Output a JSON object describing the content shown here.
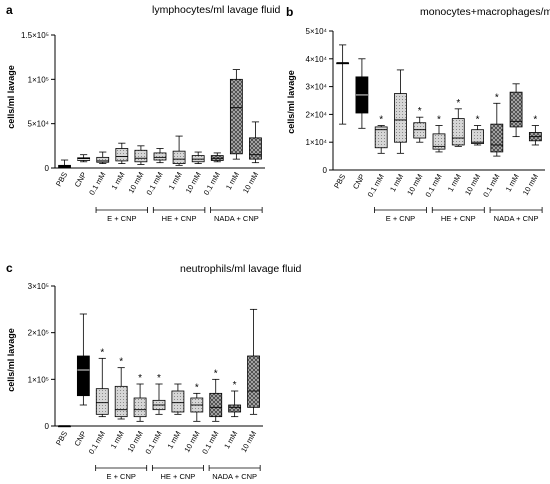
{
  "chart_data": [
    {
      "type": "box",
      "panel_letter": "a",
      "title": "lymphocytes/ml lavage fluid",
      "ylabel": "cells/ml lavage",
      "ylim": [
        0,
        150000
      ],
      "yticks": [
        "0",
        "5×10⁴",
        "1×10⁵",
        "1.5×10⁵"
      ],
      "ytick_values": [
        0,
        50000,
        100000,
        150000
      ],
      "categories": [
        "PBS",
        "CNP",
        "0.1 mM",
        "1 mM",
        "10 mM",
        "0.1 mM",
        "1 mM",
        "10 mM",
        "0.1 mM",
        "1 mM",
        "10 mM"
      ],
      "groups": [
        {
          "label": "E + CNP",
          "from": 2,
          "to": 4
        },
        {
          "label": "HE + CNP",
          "from": 5,
          "to": 7
        },
        {
          "label": "NADA + CNP",
          "from": 8,
          "to": 10
        }
      ],
      "boxes": [
        {
          "min": 0,
          "q1": 1000,
          "median": 2000,
          "q3": 3000,
          "max": 9000
        },
        {
          "min": 7000,
          "q1": 8500,
          "median": 9500,
          "q3": 11500,
          "max": 15000
        },
        {
          "min": 5000,
          "q1": 6500,
          "median": 8000,
          "q3": 12000,
          "max": 18000
        },
        {
          "min": 5000,
          "q1": 8000,
          "median": 13000,
          "q3": 22000,
          "max": 28000
        },
        {
          "min": 4000,
          "q1": 7000,
          "median": 11000,
          "q3": 20000,
          "max": 25000
        },
        {
          "min": 6000,
          "q1": 9000,
          "median": 12000,
          "q3": 17000,
          "max": 22000
        },
        {
          "min": 3000,
          "q1": 5000,
          "median": 10000,
          "q3": 19000,
          "max": 36000
        },
        {
          "min": 5000,
          "q1": 7000,
          "median": 10000,
          "q3": 14000,
          "max": 18000
        },
        {
          "min": 7000,
          "q1": 8500,
          "median": 11000,
          "q3": 14000,
          "max": 17000
        },
        {
          "min": 10000,
          "q1": 16000,
          "median": 68000,
          "q3": 100000,
          "max": 111000
        },
        {
          "min": 6000,
          "q1": 10000,
          "median": 15000,
          "q3": 34000,
          "max": 52000
        }
      ],
      "significance": [
        false,
        false,
        false,
        false,
        false,
        false,
        false,
        false,
        false,
        false,
        false
      ],
      "fills": [
        "none",
        "solid",
        "light",
        "light",
        "light",
        "light",
        "light",
        "light",
        "cross",
        "cross",
        "cross"
      ]
    },
    {
      "type": "box",
      "panel_letter": "b",
      "title": "monocytes+macrophages/ml lavage fluid",
      "ylabel": "cells/ml lavage",
      "ylim": [
        0,
        50000
      ],
      "yticks": [
        "0",
        "1×10⁴",
        "2×10⁴",
        "3×10⁴",
        "4×10⁴",
        "5×10⁴"
      ],
      "ytick_values": [
        0,
        10000,
        20000,
        30000,
        40000,
        50000
      ],
      "categories": [
        "PBS",
        "CNP",
        "0.1 mM",
        "1 mM",
        "10 mM",
        "0.1 mM",
        "1 mM",
        "10 mM",
        "0.1 mM",
        "1 mM",
        "10 mM"
      ],
      "groups": [
        {
          "label": "E + CNP",
          "from": 2,
          "to": 4
        },
        {
          "label": "HE + CNP",
          "from": 5,
          "to": 7
        },
        {
          "label": "NADA + CNP",
          "from": 8,
          "to": 10
        }
      ],
      "boxes": [
        {
          "min": 16500,
          "q1": 38500,
          "median": 38500,
          "q3": 38500,
          "max": 45000
        },
        {
          "min": 15000,
          "q1": 20500,
          "median": 27000,
          "q3": 33500,
          "max": 40000
        },
        {
          "min": 6000,
          "q1": 8000,
          "median": 14500,
          "q3": 15500,
          "max": 16000
        },
        {
          "min": 6000,
          "q1": 10000,
          "median": 18000,
          "q3": 27500,
          "max": 36000
        },
        {
          "min": 10000,
          "q1": 11500,
          "median": 14500,
          "q3": 17000,
          "max": 19000
        },
        {
          "min": 6500,
          "q1": 7500,
          "median": 8500,
          "q3": 13000,
          "max": 16000
        },
        {
          "min": 8500,
          "q1": 9000,
          "median": 11500,
          "q3": 18500,
          "max": 22000
        },
        {
          "min": 9000,
          "q1": 9500,
          "median": 10000,
          "q3": 14500,
          "max": 16000
        },
        {
          "min": 5000,
          "q1": 6500,
          "median": 9000,
          "q3": 16500,
          "max": 24000
        },
        {
          "min": 12000,
          "q1": 15500,
          "median": 17500,
          "q3": 28000,
          "max": 31000
        },
        {
          "min": 9000,
          "q1": 10500,
          "median": 12000,
          "q3": 13500,
          "max": 16000
        }
      ],
      "significance": [
        false,
        false,
        true,
        false,
        true,
        true,
        true,
        true,
        true,
        false,
        true
      ],
      "fills": [
        "none",
        "solid",
        "light",
        "light",
        "light",
        "light",
        "light",
        "light",
        "cross",
        "cross",
        "cross"
      ]
    },
    {
      "type": "box",
      "panel_letter": "c",
      "title": "neutrophils/ml lavage fluid",
      "ylabel": "cells/ml lavage",
      "ylim": [
        0,
        300000
      ],
      "yticks": [
        "0",
        "1×10⁵",
        "2×10⁵",
        "3×10⁵"
      ],
      "ytick_values": [
        0,
        100000,
        200000,
        300000
      ],
      "categories": [
        "PBS",
        "CNP",
        "0.1 mM",
        "1 mM",
        "10 mM",
        "0.1 mM",
        "1 mM",
        "10 mM",
        "0.1 mM",
        "1 mM",
        "10 mM"
      ],
      "groups": [
        {
          "label": "E + CNP",
          "from": 2,
          "to": 4
        },
        {
          "label": "HE + CNP",
          "from": 5,
          "to": 7
        },
        {
          "label": "NADA + CNP",
          "from": 8,
          "to": 10
        }
      ],
      "boxes": [
        {
          "min": 0,
          "q1": 0,
          "median": 0,
          "q3": 0,
          "max": 0
        },
        {
          "min": 45000,
          "q1": 65000,
          "median": 120000,
          "q3": 150000,
          "max": 240000
        },
        {
          "min": 20000,
          "q1": 25000,
          "median": 50000,
          "q3": 80000,
          "max": 145000
        },
        {
          "min": 15000,
          "q1": 20000,
          "median": 35000,
          "q3": 85000,
          "max": 125000
        },
        {
          "min": 10000,
          "q1": 20000,
          "median": 35000,
          "q3": 60000,
          "max": 90000
        },
        {
          "min": 25000,
          "q1": 35000,
          "median": 45000,
          "q3": 55000,
          "max": 90000
        },
        {
          "min": 25000,
          "q1": 30000,
          "median": 50000,
          "q3": 75000,
          "max": 90000
        },
        {
          "min": 10000,
          "q1": 30000,
          "median": 45000,
          "q3": 60000,
          "max": 70000
        },
        {
          "min": 10000,
          "q1": 20000,
          "median": 40000,
          "q3": 70000,
          "max": 100000
        },
        {
          "min": 20000,
          "q1": 30000,
          "median": 40000,
          "q3": 45000,
          "max": 75000
        },
        {
          "min": 25000,
          "q1": 40000,
          "median": 75000,
          "q3": 150000,
          "max": 250000
        }
      ],
      "significance": [
        false,
        false,
        true,
        true,
        true,
        true,
        false,
        true,
        true,
        true,
        false
      ],
      "fills": [
        "none",
        "solid",
        "light",
        "light",
        "light",
        "light",
        "light",
        "light",
        "cross",
        "cross",
        "cross"
      ]
    }
  ],
  "colors": {
    "solid_fill": "#000000",
    "light_fill": "#d6d6d6",
    "cross_fill": "#9a9a9a",
    "stroke": "#000000"
  }
}
